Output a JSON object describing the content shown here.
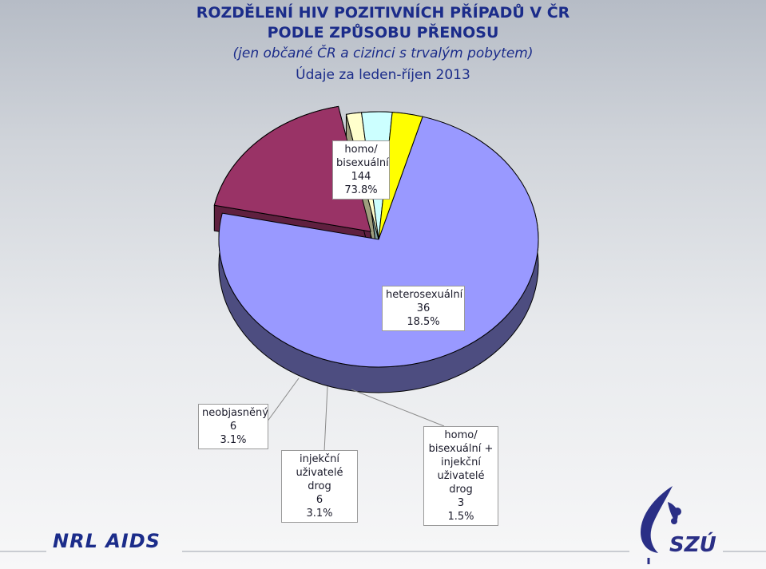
{
  "header": {
    "title_line1": "ROZDĚLENÍ HIV POZITIVNÍCH PŘÍPADŮ V ČR",
    "title_line2": "PODLE ZPŮSOBU PŘENOSU",
    "subtitle": "(jen občané ČR a cizinci s trvalým pobytem)",
    "date_note": "Údaje za leden-říjen 2013"
  },
  "footer": {
    "left_logo": "NRL AIDS",
    "right_logo": "SZÚ"
  },
  "chart_data": {
    "type": "pie",
    "three_d": true,
    "slices": [
      {
        "label_lines": [
          "homo/",
          "bisexuální"
        ],
        "count": 144,
        "percent": "73.8%",
        "color": "#9999ff"
      },
      {
        "label_lines": [
          "heterosexuální"
        ],
        "count": 36,
        "percent": "18.5%",
        "color": "#993366"
      },
      {
        "label_lines": [
          "homo/",
          "bisexuální +",
          "injekční",
          "uživatelé drog"
        ],
        "count": 3,
        "percent": "1.5%",
        "color": "#ffffcc"
      },
      {
        "label_lines": [
          "injekční",
          "uživatelé drog"
        ],
        "count": 6,
        "percent": "3.1%",
        "color": "#ccffff"
      },
      {
        "label_lines": [
          "neobjasněný"
        ],
        "count": 6,
        "percent": "3.1%",
        "color": "#ffff00"
      }
    ],
    "legend": "none"
  }
}
